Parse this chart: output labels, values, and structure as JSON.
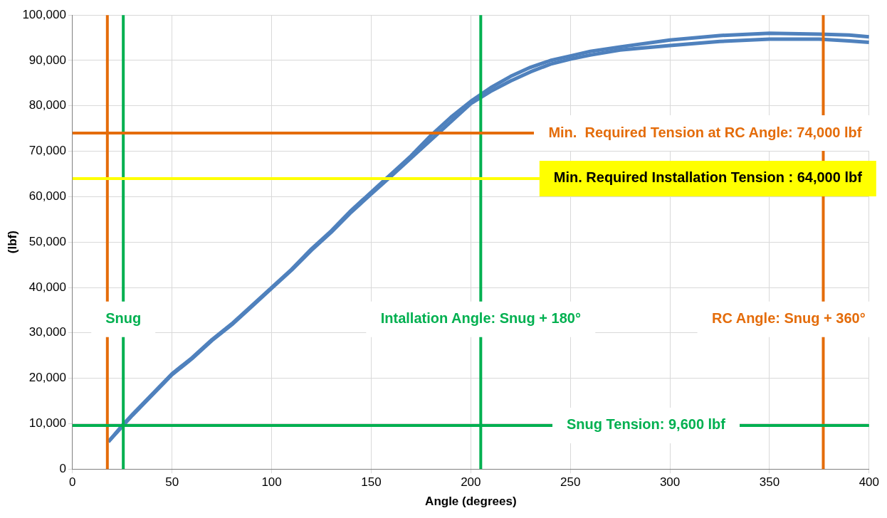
{
  "chart_data": {
    "type": "line",
    "xlabel": "Angle (degrees)",
    "ylabel": "(lbf)",
    "xlim": [
      0,
      400
    ],
    "xticks": [
      0,
      50,
      100,
      150,
      200,
      250,
      300,
      350,
      400
    ],
    "ylim": [
      0,
      100000
    ],
    "yticks": [
      0,
      {
        "value": 10000,
        "label": "10,000"
      },
      {
        "value": 20000,
        "label": "20,000"
      },
      {
        "value": 30000,
        "label": "30,000"
      },
      {
        "value": 40000,
        "label": "40,000"
      },
      {
        "value": 50000,
        "label": "50,000"
      },
      {
        "value": 60000,
        "label": "60,000"
      },
      {
        "value": 70000,
        "label": "70,000"
      },
      {
        "value": 80000,
        "label": "80,000"
      },
      {
        "value": 90000,
        "label": "90,000"
      },
      {
        "value": 100000,
        "label": "100,000"
      }
    ],
    "grid": true,
    "legend": false,
    "marker": "none",
    "line_style": "solid",
    "series": [
      {
        "color": "#4f81bd",
        "x": [
          18,
          25,
          30,
          40,
          50,
          60,
          70,
          80,
          90,
          100,
          110,
          120,
          130,
          140,
          150,
          160,
          170,
          180,
          190,
          200,
          210,
          220,
          230,
          240,
          250,
          260,
          275,
          300,
          325,
          350,
          375,
          390,
          400
        ],
        "values": [
          6000,
          9600,
          12000,
          16500,
          21000,
          24500,
          28500,
          32000,
          36000,
          40000,
          44000,
          48500,
          52500,
          57000,
          61000,
          65000,
          69000,
          73500,
          77500,
          81000,
          84000,
          86500,
          88500,
          90000,
          91000,
          92000,
          93000,
          94500,
          95500,
          96000,
          95800,
          95600,
          95200
        ]
      },
      {
        "color": "#4f81bd",
        "x": [
          18,
          25,
          30,
          40,
          50,
          60,
          70,
          80,
          90,
          100,
          110,
          120,
          130,
          140,
          150,
          160,
          170,
          180,
          190,
          200,
          210,
          220,
          230,
          240,
          250,
          260,
          275,
          300,
          325,
          350,
          375,
          390,
          400
        ],
        "values": [
          6000,
          9400,
          11800,
          16300,
          20800,
          24300,
          28300,
          31800,
          35800,
          39800,
          43800,
          48200,
          52200,
          56600,
          60600,
          64500,
          68500,
          72500,
          76500,
          80500,
          83200,
          85500,
          87500,
          89200,
          90300,
          91200,
          92300,
          93300,
          94200,
          94700,
          94700,
          94300,
          94000
        ]
      }
    ],
    "ref_lines": [
      {
        "axis": "x",
        "value": 17.5,
        "color": "#e46c0a"
      },
      {
        "axis": "x",
        "value": 25.5,
        "color": "#00b050",
        "label": "Snug"
      },
      {
        "axis": "x",
        "value": 205,
        "color": "#00b050",
        "label": "Intallation Angle: Snug + 180°"
      },
      {
        "axis": "x",
        "value": 377,
        "color": "#e46c0a",
        "label": "RC Angle: Snug + 360°"
      },
      {
        "axis": "y",
        "value": 74000,
        "color": "#e46c0a",
        "label": "Min.  Required Tension at RC Angle: 74,000 lbf"
      },
      {
        "axis": "y",
        "value": 64000,
        "color": "#ffff00",
        "label": "Min. Required Installation Tension : 64,000 lbf"
      },
      {
        "axis": "y",
        "value": 9600,
        "color": "#00b050",
        "label": "Snug Tension: 9,600 lbf"
      }
    ]
  }
}
